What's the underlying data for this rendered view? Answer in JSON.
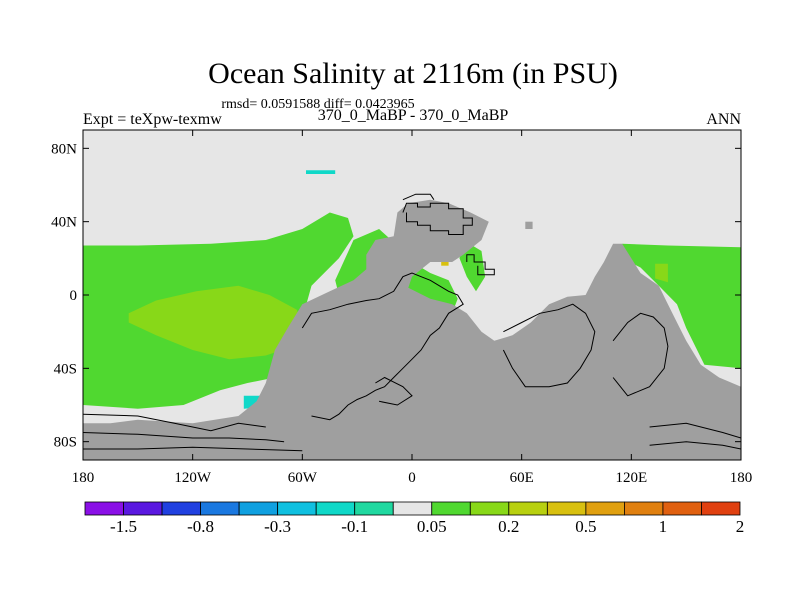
{
  "chart_data": {
    "type": "heatmap",
    "title": "Ocean Salinity at 2116m (in PSU)",
    "subtitle": "rmsd= 0.0591588 diff= 0.0423965",
    "left_label": "Expt = teXpw-texmw",
    "center_label": "370_0_MaBP - 370_0_MaBP",
    "right_label": "ANN",
    "xlim": [
      -180,
      180
    ],
    "ylim": [
      -90,
      90
    ],
    "x_ticks": [
      {
        "value": -180,
        "label": "180"
      },
      {
        "value": -120,
        "label": "120W"
      },
      {
        "value": -60,
        "label": "60W"
      },
      {
        "value": 0,
        "label": "0"
      },
      {
        "value": 60,
        "label": "60E"
      },
      {
        "value": 120,
        "label": "120E"
      },
      {
        "value": 180,
        "label": "180"
      }
    ],
    "y_ticks": [
      {
        "value": 80,
        "label": "80N"
      },
      {
        "value": 40,
        "label": "40N"
      },
      {
        "value": 0,
        "label": "0"
      },
      {
        "value": -40,
        "label": "40S"
      },
      {
        "value": -80,
        "label": "80S"
      }
    ],
    "colorbar": {
      "colors": [
        "#8a10e6",
        "#5a18e0",
        "#2040e0",
        "#1a78e0",
        "#10a0e0",
        "#10c0e0",
        "#10d8c8",
        "#20d8a0",
        "#e6e6e6",
        "#50d830",
        "#88d818",
        "#b8d010",
        "#d8c010",
        "#e0a010",
        "#e08010",
        "#e06010",
        "#e04010"
      ],
      "labels": [
        {
          "boundary": 1,
          "text": "-1.5"
        },
        {
          "boundary": 3,
          "text": "-0.8"
        },
        {
          "boundary": 5,
          "text": "-0.3"
        },
        {
          "boundary": 7,
          "text": "-0.1"
        },
        {
          "boundary": 9,
          "text": "0.05"
        },
        {
          "boundary": 11,
          "text": "0.2"
        },
        {
          "boundary": 13,
          "text": "0.5"
        },
        {
          "boundary": 15,
          "text": "1"
        },
        {
          "boundary": 17,
          "text": "2"
        }
      ]
    },
    "field_regions": [
      {
        "name": "background-ocean",
        "color": "#e6e6e6",
        "points": [
          [
            -180,
            90
          ],
          [
            180,
            90
          ],
          [
            180,
            -90
          ],
          [
            -180,
            -90
          ]
        ]
      },
      {
        "name": "pacific-positive",
        "color": "#50d830",
        "points": [
          [
            -180,
            27
          ],
          [
            -150,
            27
          ],
          [
            -110,
            28
          ],
          [
            -80,
            30
          ],
          [
            -60,
            36
          ],
          [
            -45,
            45
          ],
          [
            -35,
            42
          ],
          [
            -32,
            32
          ],
          [
            -40,
            20
          ],
          [
            -55,
            5
          ],
          [
            -62,
            -20
          ],
          [
            -65,
            -38
          ],
          [
            -75,
            -45
          ],
          [
            -90,
            -48
          ],
          [
            -105,
            -52
          ],
          [
            -125,
            -60
          ],
          [
            -150,
            -62
          ],
          [
            -180,
            -60
          ]
        ]
      },
      {
        "name": "pacific-band-0.2",
        "color": "#88d818",
        "points": [
          [
            -155,
            -10
          ],
          [
            -140,
            -3
          ],
          [
            -118,
            2
          ],
          [
            -95,
            5
          ],
          [
            -78,
            0
          ],
          [
            -63,
            -8
          ],
          [
            -60,
            -18
          ],
          [
            -65,
            -28
          ],
          [
            -80,
            -33
          ],
          [
            -100,
            -35
          ],
          [
            -120,
            -30
          ],
          [
            -140,
            -22
          ],
          [
            -155,
            -15
          ]
        ]
      },
      {
        "name": "east-pacific-positive",
        "color": "#50d830",
        "points": [
          [
            115,
            28
          ],
          [
            140,
            27
          ],
          [
            180,
            26
          ],
          [
            180,
            -40
          ],
          [
            160,
            -38
          ],
          [
            150,
            -18
          ],
          [
            145,
            -5
          ],
          [
            135,
            5
          ],
          [
            125,
            15
          ],
          [
            115,
            20
          ]
        ]
      },
      {
        "name": "atlantic-positive",
        "color": "#50d830",
        "points": [
          [
            -32,
            30
          ],
          [
            -18,
            36
          ],
          [
            -8,
            27
          ],
          [
            0,
            18
          ],
          [
            10,
            12
          ],
          [
            20,
            8
          ],
          [
            25,
            -2
          ],
          [
            20,
            -15
          ],
          [
            10,
            -22
          ],
          [
            0,
            -30
          ],
          [
            -10,
            -40
          ],
          [
            -25,
            -48
          ],
          [
            -40,
            -48
          ],
          [
            -55,
            -46
          ],
          [
            -45,
            -28
          ],
          [
            -38,
            -8
          ],
          [
            -42,
            8
          ]
        ]
      },
      {
        "name": "indian-positive-patch",
        "color": "#50d830",
        "points": [
          [
            28,
            30
          ],
          [
            38,
            24
          ],
          [
            40,
            10
          ],
          [
            35,
            2
          ],
          [
            30,
            10
          ],
          [
            26,
            20
          ]
        ]
      },
      {
        "name": "southern-cyan-patch",
        "color": "#10d8c8",
        "points": [
          [
            -92,
            -55
          ],
          [
            -80,
            -55
          ],
          [
            -78,
            -61
          ],
          [
            -92,
            -62
          ]
        ]
      },
      {
        "name": "west-pacific-0.2",
        "color": "#88d818",
        "points": [
          [
            133,
            17
          ],
          [
            140,
            17
          ],
          [
            140,
            7
          ],
          [
            133,
            9
          ]
        ]
      },
      {
        "name": "west-ocean-0.5",
        "color": "#d8c010",
        "points": [
          [
            16,
            23
          ],
          [
            20,
            23
          ],
          [
            20,
            16
          ],
          [
            16,
            16
          ]
        ]
      },
      {
        "name": "arctic-cyan-patch",
        "color": "#10d8c8",
        "points": [
          [
            -58,
            68
          ],
          [
            -42,
            68
          ],
          [
            -42,
            66
          ],
          [
            -58,
            66
          ]
        ]
      }
    ],
    "land_color": "#9f9f9f",
    "land_regions": [
      {
        "name": "pangea-main",
        "points": [
          [
            -75,
            -30
          ],
          [
            -68,
            -18
          ],
          [
            -60,
            -5
          ],
          [
            -45,
            2
          ],
          [
            -32,
            8
          ],
          [
            -25,
            14
          ],
          [
            -25,
            22
          ],
          [
            -20,
            30
          ],
          [
            -10,
            32
          ],
          [
            -8,
            45
          ],
          [
            -2,
            50
          ],
          [
            10,
            52
          ],
          [
            20,
            50
          ],
          [
            32,
            45
          ],
          [
            42,
            40
          ],
          [
            38,
            30
          ],
          [
            28,
            22
          ],
          [
            22,
            18
          ],
          [
            10,
            18
          ],
          [
            0,
            10
          ],
          [
            -2,
            4
          ],
          [
            10,
            -2
          ],
          [
            22,
            -5
          ],
          [
            30,
            -10
          ],
          [
            38,
            -20
          ],
          [
            45,
            -25
          ],
          [
            55,
            -22
          ],
          [
            65,
            -15
          ],
          [
            75,
            -5
          ],
          [
            85,
            -1
          ],
          [
            95,
            0
          ],
          [
            100,
            10
          ],
          [
            105,
            18
          ],
          [
            110,
            28
          ],
          [
            115,
            28
          ],
          [
            120,
            20
          ],
          [
            125,
            12
          ],
          [
            135,
            5
          ],
          [
            140,
            -5
          ],
          [
            145,
            -15
          ],
          [
            150,
            -25
          ],
          [
            158,
            -38
          ],
          [
            168,
            -45
          ],
          [
            180,
            -50
          ],
          [
            180,
            -90
          ],
          [
            -180,
            -90
          ],
          [
            -180,
            -70
          ],
          [
            -165,
            -70
          ],
          [
            -150,
            -68
          ],
          [
            -120,
            -70
          ],
          [
            -95,
            -66
          ],
          [
            -85,
            -58
          ],
          [
            -80,
            -48
          ]
        ]
      },
      {
        "name": "small-island",
        "points": [
          [
            62,
            40
          ],
          [
            66,
            40
          ],
          [
            66,
            36
          ],
          [
            62,
            36
          ]
        ]
      },
      {
        "name": "eastern-cape",
        "points": [
          [
            62,
            -28
          ],
          [
            75,
            -40
          ],
          [
            85,
            -45
          ],
          [
            82,
            -55
          ],
          [
            65,
            -48
          ]
        ]
      }
    ],
    "coastline_paths": [
      [
        [
          -5,
          45
        ],
        [
          -3,
          50
        ],
        [
          3,
          50
        ],
        [
          3,
          48
        ],
        [
          10,
          48
        ],
        [
          10,
          50
        ],
        [
          20,
          50
        ],
        [
          20,
          47
        ],
        [
          28,
          47
        ],
        [
          28,
          42
        ],
        [
          33,
          42
        ],
        [
          33,
          38
        ],
        [
          28,
          38
        ],
        [
          28,
          33
        ],
        [
          20,
          33
        ],
        [
          20,
          35
        ],
        [
          10,
          35
        ],
        [
          10,
          38
        ],
        [
          3,
          38
        ],
        [
          3,
          40
        ],
        [
          -3,
          40
        ],
        [
          -3,
          45
        ]
      ],
      [
        [
          30,
          18
        ],
        [
          30,
          22
        ],
        [
          34,
          22
        ],
        [
          34,
          18
        ],
        [
          40,
          18
        ],
        [
          40,
          14
        ],
        [
          45,
          14
        ],
        [
          45,
          11
        ],
        [
          36,
          11
        ],
        [
          36,
          16
        ]
      ],
      [
        [
          -60,
          -18
        ],
        [
          -55,
          -10
        ],
        [
          -45,
          -8
        ],
        [
          -35,
          -5
        ],
        [
          -25,
          -3
        ],
        [
          -18,
          -2
        ],
        [
          -10,
          2
        ],
        [
          -5,
          10
        ],
        [
          0,
          12
        ],
        [
          5,
          10
        ],
        [
          10,
          8
        ],
        [
          15,
          5
        ],
        [
          20,
          2
        ],
        [
          25,
          0
        ],
        [
          28,
          -5
        ],
        [
          20,
          -10
        ],
        [
          15,
          -18
        ],
        [
          10,
          -22
        ],
        [
          5,
          -30
        ],
        [
          0,
          -35
        ],
        [
          -5,
          -40
        ],
        [
          -10,
          -45
        ],
        [
          -15,
          -50
        ],
        [
          -20,
          -52
        ],
        [
          -25,
          -55
        ],
        [
          -30,
          -57
        ],
        [
          -35,
          -60
        ],
        [
          -40,
          -65
        ],
        [
          -45,
          -68
        ],
        [
          -55,
          -66
        ]
      ],
      [
        [
          -20,
          -48
        ],
        [
          -15,
          -45
        ],
        [
          -5,
          -50
        ],
        [
          0,
          -55
        ],
        [
          -8,
          -60
        ],
        [
          -18,
          -58
        ]
      ],
      [
        [
          50,
          -20
        ],
        [
          60,
          -15
        ],
        [
          70,
          -10
        ],
        [
          80,
          -8
        ],
        [
          88,
          -5
        ],
        [
          95,
          -10
        ],
        [
          100,
          -20
        ],
        [
          98,
          -30
        ],
        [
          92,
          -40
        ],
        [
          85,
          -48
        ],
        [
          75,
          -50
        ],
        [
          62,
          -50
        ],
        [
          55,
          -40
        ],
        [
          50,
          -30
        ]
      ],
      [
        [
          110,
          -25
        ],
        [
          118,
          -15
        ],
        [
          125,
          -10
        ],
        [
          132,
          -12
        ],
        [
          138,
          -18
        ],
        [
          140,
          -28
        ],
        [
          138,
          -40
        ],
        [
          130,
          -50
        ],
        [
          118,
          -55
        ],
        [
          110,
          -45
        ]
      ],
      [
        [
          -180,
          -65
        ],
        [
          -150,
          -66
        ],
        [
          -130,
          -70
        ],
        [
          -110,
          -74
        ],
        [
          -95,
          -70
        ],
        [
          -80,
          -72
        ]
      ],
      [
        [
          -180,
          -75
        ],
        [
          -150,
          -76
        ],
        [
          -120,
          -78
        ],
        [
          -100,
          -78
        ],
        [
          -80,
          -79
        ],
        [
          -70,
          -80
        ]
      ],
      [
        [
          -180,
          -84
        ],
        [
          -150,
          -84
        ],
        [
          -120,
          -83
        ],
        [
          -90,
          -84
        ],
        [
          -60,
          -85
        ]
      ],
      [
        [
          130,
          -72
        ],
        [
          150,
          -70
        ],
        [
          170,
          -75
        ],
        [
          180,
          -78
        ]
      ],
      [
        [
          130,
          -82
        ],
        [
          150,
          -80
        ],
        [
          170,
          -82
        ],
        [
          180,
          -84
        ]
      ],
      [
        [
          -5,
          52
        ],
        [
          2,
          55
        ],
        [
          10,
          55
        ],
        [
          12,
          52
        ]
      ]
    ]
  }
}
